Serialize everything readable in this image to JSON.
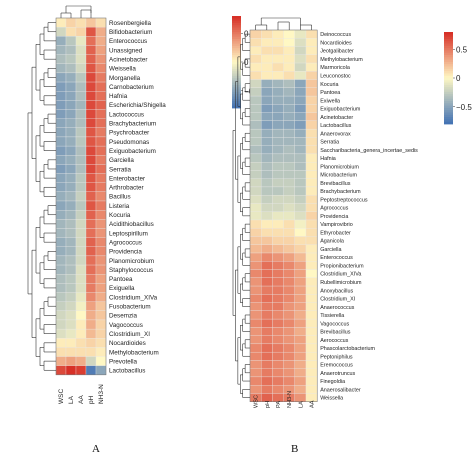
{
  "colors": {
    "negative": "#4574b4",
    "neutral": "#fff8c4",
    "positive": "#d73027",
    "background": "#ffffff"
  },
  "chart_data": [
    {
      "type": "heatmap",
      "panel_label": "A",
      "columns": [
        "WSC",
        "LA",
        "AA",
        "pH",
        "NH3-N"
      ],
      "legend": {
        "min": -0.8,
        "max": 0.8,
        "ticks": [
          0.5,
          0,
          -0.5
        ]
      },
      "rows": [
        {
          "label": "Rosenbergiella",
          "values": [
            0.05,
            0.15,
            0.1,
            0.2,
            0.1
          ]
        },
        {
          "label": "Bifidobacterium",
          "values": [
            -0.2,
            0.1,
            0.15,
            0.65,
            0.3
          ]
        },
        {
          "label": "Enterococcus",
          "values": [
            -0.45,
            -0.3,
            -0.1,
            0.55,
            0.3
          ]
        },
        {
          "label": "Unassigned",
          "values": [
            -0.4,
            -0.35,
            -0.15,
            0.6,
            0.35
          ]
        },
        {
          "label": "Acinetobacter",
          "values": [
            -0.35,
            -0.3,
            -0.15,
            0.6,
            0.4
          ]
        },
        {
          "label": "Weissella",
          "values": [
            -0.4,
            -0.35,
            -0.2,
            0.65,
            0.45
          ]
        },
        {
          "label": "Morganella",
          "values": [
            -0.5,
            -0.45,
            -0.3,
            0.7,
            0.5
          ]
        },
        {
          "label": "Carnobacterium",
          "values": [
            -0.55,
            -0.5,
            -0.35,
            0.7,
            0.55
          ]
        },
        {
          "label": "Hafnia",
          "values": [
            -0.55,
            -0.5,
            -0.35,
            0.7,
            0.55
          ]
        },
        {
          "label": "Escherichia/Shigella",
          "values": [
            -0.55,
            -0.5,
            -0.4,
            0.7,
            0.6
          ]
        },
        {
          "label": "Lactococcus",
          "values": [
            -0.55,
            -0.5,
            -0.35,
            0.7,
            0.55
          ]
        },
        {
          "label": "Brachybacterium",
          "values": [
            -0.5,
            -0.45,
            -0.35,
            0.7,
            0.55
          ]
        },
        {
          "label": "Psychrobacter",
          "values": [
            -0.5,
            -0.45,
            -0.3,
            0.65,
            0.5
          ]
        },
        {
          "label": "Pseudomonas",
          "values": [
            -0.5,
            -0.45,
            -0.3,
            0.65,
            0.55
          ]
        },
        {
          "label": "Exiguobacterium",
          "values": [
            -0.55,
            -0.5,
            -0.35,
            0.7,
            0.55
          ]
        },
        {
          "label": "Garciella",
          "values": [
            -0.5,
            -0.45,
            -0.35,
            0.7,
            0.5
          ]
        },
        {
          "label": "Serratia",
          "values": [
            -0.55,
            -0.5,
            -0.35,
            0.7,
            0.55
          ]
        },
        {
          "label": "Enterobacter",
          "values": [
            -0.5,
            -0.45,
            -0.3,
            0.65,
            0.5
          ]
        },
        {
          "label": "Arthrobacter",
          "values": [
            -0.5,
            -0.45,
            -0.3,
            0.65,
            0.5
          ]
        },
        {
          "label": "Bacillus",
          "values": [
            -0.45,
            -0.4,
            -0.25,
            0.6,
            0.45
          ]
        },
        {
          "label": "Listeria",
          "values": [
            -0.5,
            -0.45,
            -0.3,
            0.65,
            0.5
          ]
        },
        {
          "label": "Kocuria",
          "values": [
            -0.45,
            -0.4,
            -0.25,
            0.6,
            0.45
          ]
        },
        {
          "label": "Acidithiobacillus",
          "values": [
            -0.4,
            -0.35,
            -0.2,
            0.55,
            0.4
          ]
        },
        {
          "label": "Leptospirillum",
          "values": [
            -0.4,
            -0.35,
            -0.2,
            0.55,
            0.4
          ]
        },
        {
          "label": "Agrococcus",
          "values": [
            -0.45,
            -0.4,
            -0.2,
            0.6,
            0.45
          ]
        },
        {
          "label": "Providencia",
          "values": [
            -0.45,
            -0.4,
            -0.2,
            0.6,
            0.45
          ]
        },
        {
          "label": "Planomicrobium",
          "values": [
            -0.4,
            -0.35,
            -0.2,
            0.55,
            0.4
          ]
        },
        {
          "label": "Staphylococcus",
          "values": [
            -0.4,
            -0.35,
            -0.15,
            0.55,
            0.4
          ]
        },
        {
          "label": "Pantoea",
          "values": [
            -0.35,
            -0.3,
            -0.15,
            0.5,
            0.35
          ]
        },
        {
          "label": "Exiguella",
          "values": [
            -0.35,
            -0.3,
            -0.15,
            0.5,
            0.35
          ]
        },
        {
          "label": "Clostridium_XIVa",
          "values": [
            -0.3,
            -0.25,
            -0.1,
            0.45,
            0.3
          ]
        },
        {
          "label": "Fusobacterium",
          "values": [
            -0.25,
            -0.2,
            -0.05,
            0.35,
            0.2
          ]
        },
        {
          "label": "Desemzia",
          "values": [
            -0.2,
            -0.15,
            0.0,
            0.3,
            0.2
          ]
        },
        {
          "label": "Vagococcus",
          "values": [
            -0.2,
            -0.15,
            0.05,
            0.3,
            0.15
          ]
        },
        {
          "label": "Clostridium_XI",
          "values": [
            -0.15,
            -0.1,
            0.05,
            0.25,
            0.15
          ]
        },
        {
          "label": "Nocardioides",
          "values": [
            0.05,
            0.05,
            0.1,
            0.15,
            0.1
          ]
        },
        {
          "label": "Methylobacterium",
          "values": [
            0.1,
            0.1,
            0.1,
            0.1,
            0.05
          ]
        },
        {
          "label": "Prevotella",
          "values": [
            0.3,
            0.35,
            0.3,
            -0.2,
            0.0
          ]
        },
        {
          "label": "Lactobacillus",
          "values": [
            0.7,
            0.8,
            0.75,
            -0.75,
            -0.5
          ]
        }
      ]
    },
    {
      "type": "heatmap",
      "panel_label": "B",
      "columns": [
        "WSC",
        "pH",
        "PA",
        "NH3-N",
        "LA",
        "AA"
      ],
      "legend": {
        "min": -0.8,
        "max": 0.8,
        "ticks": [
          0.5,
          0,
          -0.5
        ]
      },
      "rows": [
        {
          "label": "Deinococcus",
          "values": [
            0.15,
            0.1,
            0.05,
            0.0,
            -0.1,
            0.1
          ]
        },
        {
          "label": "Nocardioides",
          "values": [
            0.1,
            0.05,
            0.05,
            0.0,
            -0.15,
            0.05
          ]
        },
        {
          "label": "Jeotgalibacter",
          "values": [
            0.05,
            0.1,
            0.1,
            0.05,
            -0.2,
            0.05
          ]
        },
        {
          "label": "Methylobacterium",
          "values": [
            0.1,
            0.05,
            0.05,
            0.05,
            -0.15,
            0.1
          ]
        },
        {
          "label": "Marmoricola",
          "values": [
            0.05,
            0.05,
            0.1,
            0.05,
            -0.2,
            0.05
          ]
        },
        {
          "label": "Leuconostoc",
          "values": [
            0.1,
            0.05,
            0.05,
            0.1,
            -0.1,
            0.15
          ]
        },
        {
          "label": "Kocuria",
          "values": [
            -0.2,
            -0.45,
            -0.4,
            -0.35,
            -0.5,
            0.2
          ]
        },
        {
          "label": "Pantoea",
          "values": [
            -0.25,
            -0.5,
            -0.45,
            -0.4,
            -0.5,
            0.2
          ]
        },
        {
          "label": "Exiwella",
          "values": [
            -0.3,
            -0.5,
            -0.45,
            -0.45,
            -0.5,
            0.15
          ]
        },
        {
          "label": "Exiguobacterium",
          "values": [
            -0.3,
            -0.55,
            -0.5,
            -0.45,
            -0.55,
            0.15
          ]
        },
        {
          "label": "Acinetobacter",
          "values": [
            -0.3,
            -0.5,
            -0.5,
            -0.45,
            -0.5,
            0.2
          ]
        },
        {
          "label": "Lactobacillus",
          "values": [
            -0.35,
            -0.55,
            -0.5,
            -0.5,
            -0.55,
            0.15
          ]
        },
        {
          "label": "Anaerovorax",
          "values": [
            -0.3,
            -0.45,
            -0.4,
            -0.4,
            -0.45,
            0.1
          ]
        },
        {
          "label": "Serratia",
          "values": [
            -0.3,
            -0.45,
            -0.4,
            -0.4,
            -0.4,
            0.1
          ]
        },
        {
          "label": "Saccharibacteria_genera_incertae_sedis",
          "values": [
            -0.35,
            -0.45,
            -0.4,
            -0.35,
            -0.4,
            0.1
          ]
        },
        {
          "label": "Hafnia",
          "values": [
            -0.3,
            -0.4,
            -0.35,
            -0.35,
            -0.35,
            0.05
          ]
        },
        {
          "label": "Planomicrobium",
          "values": [
            -0.25,
            -0.35,
            -0.3,
            -0.3,
            -0.35,
            0.05
          ]
        },
        {
          "label": "Microbacterium",
          "values": [
            -0.25,
            -0.35,
            -0.3,
            -0.3,
            -0.3,
            0.05
          ]
        },
        {
          "label": "Brevibacillus",
          "values": [
            -0.2,
            -0.3,
            -0.25,
            -0.25,
            -0.3,
            0.05
          ]
        },
        {
          "label": "Brachybacterium",
          "values": [
            -0.2,
            -0.3,
            -0.3,
            -0.25,
            -0.3,
            0.05
          ]
        },
        {
          "label": "Peptostreptococcus",
          "values": [
            -0.15,
            -0.25,
            -0.2,
            -0.2,
            -0.25,
            0.1
          ]
        },
        {
          "label": "Agrococcus",
          "values": [
            -0.1,
            -0.2,
            -0.2,
            -0.15,
            -0.2,
            0.1
          ]
        },
        {
          "label": "Providencia",
          "values": [
            -0.1,
            -0.15,
            -0.1,
            -0.1,
            -0.15,
            0.15
          ]
        },
        {
          "label": "Vampirovibrio",
          "values": [
            0.1,
            0.05,
            0.05,
            0.1,
            -0.05,
            0.1
          ]
        },
        {
          "label": "Ethyrobacter",
          "values": [
            0.15,
            0.1,
            0.1,
            0.1,
            0.0,
            0.1
          ]
        },
        {
          "label": "Aganicola",
          "values": [
            0.2,
            0.2,
            0.15,
            0.15,
            0.1,
            0.1
          ]
        },
        {
          "label": "Garciella",
          "values": [
            0.25,
            0.3,
            0.25,
            0.2,
            0.15,
            0.05
          ]
        },
        {
          "label": "Enterococcus",
          "values": [
            0.35,
            0.45,
            0.4,
            0.35,
            0.25,
            0.05
          ]
        },
        {
          "label": "Propionibacterium",
          "values": [
            0.4,
            0.55,
            0.5,
            0.45,
            0.35,
            0.05
          ]
        },
        {
          "label": "Clostridium_XIVa",
          "values": [
            0.45,
            0.55,
            0.5,
            0.45,
            0.35,
            0.0
          ]
        },
        {
          "label": "Rubellimicrobium",
          "values": [
            0.4,
            0.55,
            0.5,
            0.45,
            0.35,
            0.05
          ]
        },
        {
          "label": "Anoxybacillus",
          "values": [
            0.4,
            0.5,
            0.5,
            0.45,
            0.35,
            0.05
          ]
        },
        {
          "label": "Clostridium_XI",
          "values": [
            0.45,
            0.55,
            0.5,
            0.45,
            0.35,
            0.05
          ]
        },
        {
          "label": "Anaerococcus",
          "values": [
            0.4,
            0.5,
            0.5,
            0.4,
            0.35,
            0.05
          ]
        },
        {
          "label": "Tissierella",
          "values": [
            0.4,
            0.5,
            0.45,
            0.4,
            0.3,
            0.05
          ]
        },
        {
          "label": "Vagococcus",
          "values": [
            0.45,
            0.55,
            0.5,
            0.45,
            0.35,
            0.05
          ]
        },
        {
          "label": "Brevibacillus",
          "values": [
            0.4,
            0.5,
            0.45,
            0.4,
            0.3,
            0.05
          ]
        },
        {
          "label": "Aerococcus",
          "values": [
            0.4,
            0.5,
            0.45,
            0.4,
            0.35,
            0.05
          ]
        },
        {
          "label": "Phascolarctobacterium",
          "values": [
            0.45,
            0.55,
            0.5,
            0.45,
            0.35,
            0.05
          ]
        },
        {
          "label": "Peptoniphilus",
          "values": [
            0.45,
            0.55,
            0.5,
            0.45,
            0.35,
            0.05
          ]
        },
        {
          "label": "Eremococcus",
          "values": [
            0.4,
            0.5,
            0.45,
            0.4,
            0.3,
            0.05
          ]
        },
        {
          "label": "Anaerotruncus",
          "values": [
            0.4,
            0.5,
            0.45,
            0.4,
            0.3,
            0.05
          ]
        },
        {
          "label": "Finegoldia",
          "values": [
            0.45,
            0.55,
            0.5,
            0.45,
            0.35,
            0.05
          ]
        },
        {
          "label": "Anaerosalibacter",
          "values": [
            0.4,
            0.5,
            0.45,
            0.4,
            0.3,
            0.05
          ]
        },
        {
          "label": "Weissella",
          "values": [
            0.5,
            0.6,
            0.55,
            0.5,
            0.4,
            0.05
          ]
        }
      ]
    }
  ]
}
